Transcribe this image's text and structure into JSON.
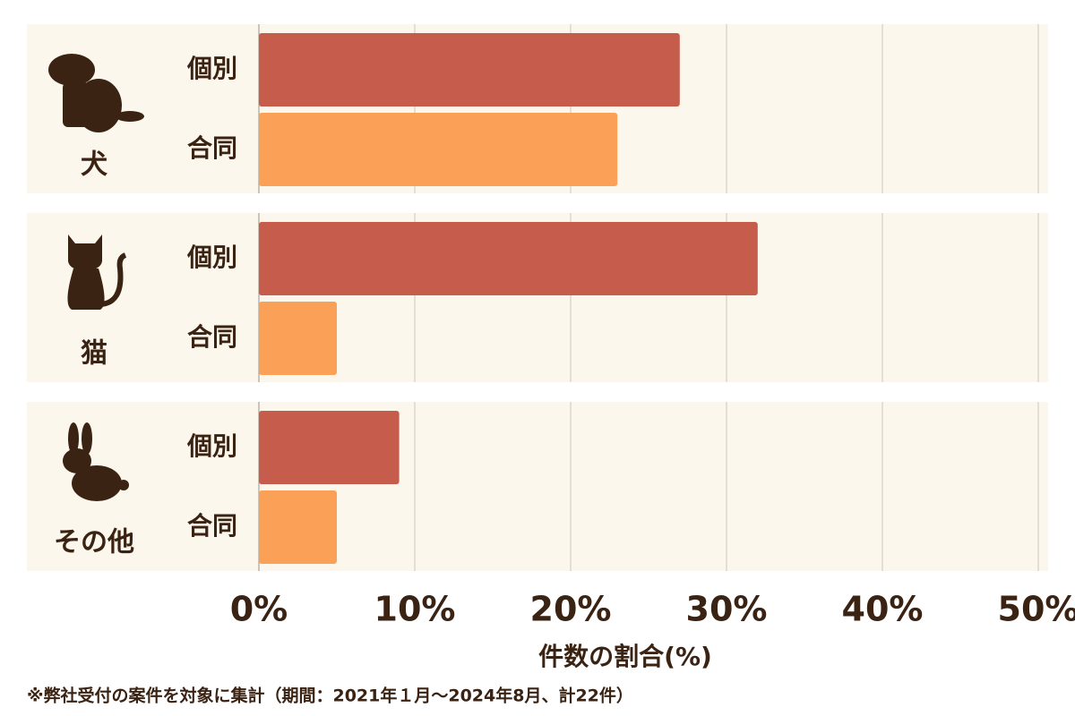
{
  "chart_data": {
    "type": "grouped-hbar",
    "categories": [
      "犬",
      "猫",
      "その他"
    ],
    "series": [
      {
        "name": "個別",
        "color": "#c55c4c",
        "values": [
          27,
          32,
          9
        ]
      },
      {
        "name": "合同",
        "color": "#fba157",
        "values": [
          23,
          5,
          5
        ]
      }
    ],
    "xlabel": "件数の割合(%)",
    "xlim": [
      0,
      50
    ],
    "xticks": [
      {
        "value": 0,
        "label": "0%"
      },
      {
        "value": 10,
        "label": "10%"
      },
      {
        "value": 20,
        "label": "20%"
      },
      {
        "value": 30,
        "label": "30%"
      },
      {
        "value": 40,
        "label": "40%"
      },
      {
        "value": 50,
        "label": "50%"
      }
    ],
    "grid": true,
    "note": "※弊社受付の案件を対象に集計（期間：2021年１月～2024年8月、計22件）"
  }
}
